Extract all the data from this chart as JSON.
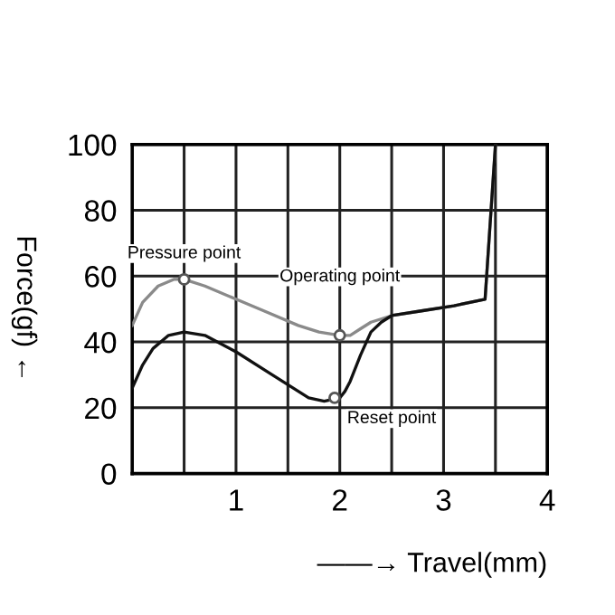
{
  "chart_data": {
    "type": "line",
    "xlabel": "——→ Travel(mm)",
    "ylabel": "Force(gf) ←",
    "xlim": [
      0,
      4
    ],
    "ylim": [
      0,
      100
    ],
    "xticks": [
      {
        "value": 0.5,
        "label": null
      },
      1,
      {
        "value": 1.5,
        "label": null
      },
      2,
      {
        "value": 2.5,
        "label": null
      },
      3,
      {
        "value": 3.5,
        "label": null
      },
      4
    ],
    "yticks": [
      0,
      20,
      40,
      60,
      80,
      100
    ],
    "grid": true,
    "legend": false,
    "marker": "none",
    "line_style": "solid",
    "series": [
      {
        "color": "#8a8a8a",
        "x": [
          0,
          0.1,
          0.25,
          0.4,
          0.5,
          0.7,
          1.0,
          1.3,
          1.6,
          1.8,
          2.0,
          2.1,
          2.2,
          2.3,
          2.5,
          2.8,
          3.1,
          3.4,
          3.5
        ],
        "values": [
          45,
          52,
          57,
          59,
          59,
          57,
          53,
          49,
          45,
          43,
          42,
          42,
          44,
          46,
          48,
          49.5,
          51,
          53,
          100
        ]
      },
      {
        "color": "#111111",
        "x": [
          0,
          0.1,
          0.2,
          0.35,
          0.5,
          0.7,
          1.0,
          1.3,
          1.5,
          1.7,
          1.85,
          2.0,
          2.05,
          2.1,
          2.2,
          2.3,
          2.4,
          2.5,
          2.8,
          3.1,
          3.4,
          3.5
        ],
        "values": [
          26,
          33,
          38,
          42,
          43,
          42,
          37,
          31,
          27,
          23,
          22,
          23,
          25,
          28,
          36,
          43,
          46,
          48,
          49.5,
          51,
          53,
          100
        ]
      }
    ],
    "annotations": [
      {
        "text": "Pressure point",
        "x": 0.5,
        "y": 59
      },
      {
        "text": "Operating point",
        "x": 2.0,
        "y": 42
      },
      {
        "text": "Reset point",
        "x": 1.95,
        "y": 23
      }
    ]
  }
}
